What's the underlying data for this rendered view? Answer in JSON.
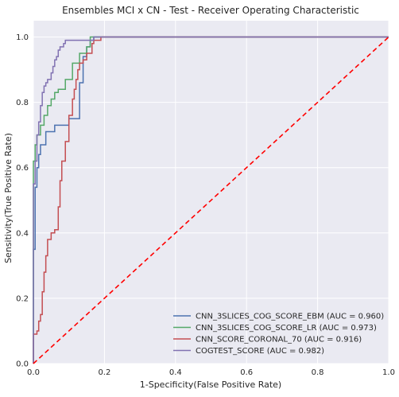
{
  "chart_data": {
    "type": "line",
    "title": "Ensembles MCI x CN - Test - Receiver Operating Characteristic",
    "xlabel": "1-Specificity(False Positive Rate)",
    "ylabel": "Sensitivity(True Positive Rate)",
    "xlim": [
      0,
      1
    ],
    "ylim": [
      0,
      1.05
    ],
    "xticks": [
      "0.0",
      "0.2",
      "0.4",
      "0.6",
      "0.8",
      "1.0"
    ],
    "yticks": [
      "0.0",
      "0.2",
      "0.4",
      "0.6",
      "0.8",
      "1.0"
    ],
    "grid": true,
    "legend_position": "lower-right",
    "background_color": "#EAEAF2",
    "grid_color": "#FFFFFF",
    "series": [
      {
        "name": "CNN_3SLICES_COG_SCORE_EBM (AUC = 0.960)",
        "color": "#4C72B0",
        "points": [
          [
            0,
            0
          ],
          [
            0,
            0.35
          ],
          [
            0.005,
            0.35
          ],
          [
            0.005,
            0.54
          ],
          [
            0.01,
            0.54
          ],
          [
            0.01,
            0.6
          ],
          [
            0.015,
            0.6
          ],
          [
            0.015,
            0.64
          ],
          [
            0.02,
            0.64
          ],
          [
            0.02,
            0.67
          ],
          [
            0.035,
            0.67
          ],
          [
            0.035,
            0.71
          ],
          [
            0.06,
            0.71
          ],
          [
            0.06,
            0.73
          ],
          [
            0.1,
            0.73
          ],
          [
            0.1,
            0.75
          ],
          [
            0.13,
            0.75
          ],
          [
            0.13,
            0.86
          ],
          [
            0.14,
            0.86
          ],
          [
            0.14,
            0.94
          ],
          [
            0.15,
            0.94
          ],
          [
            0.15,
            0.97
          ],
          [
            0.16,
            0.97
          ],
          [
            0.16,
            0.99
          ],
          [
            0.17,
            0.99
          ],
          [
            0.17,
            1.0
          ],
          [
            1,
            1.0
          ]
        ]
      },
      {
        "name": "CNN_3SLICES_COG_SCORE_LR (AUC = 0.973)",
        "color": "#55A868",
        "points": [
          [
            0,
            0
          ],
          [
            0,
            0.62
          ],
          [
            0.005,
            0.62
          ],
          [
            0.005,
            0.67
          ],
          [
            0.01,
            0.67
          ],
          [
            0.01,
            0.7
          ],
          [
            0.02,
            0.7
          ],
          [
            0.02,
            0.73
          ],
          [
            0.03,
            0.73
          ],
          [
            0.03,
            0.76
          ],
          [
            0.04,
            0.76
          ],
          [
            0.04,
            0.79
          ],
          [
            0.05,
            0.79
          ],
          [
            0.05,
            0.81
          ],
          [
            0.06,
            0.81
          ],
          [
            0.06,
            0.83
          ],
          [
            0.07,
            0.83
          ],
          [
            0.07,
            0.84
          ],
          [
            0.09,
            0.84
          ],
          [
            0.09,
            0.87
          ],
          [
            0.11,
            0.87
          ],
          [
            0.11,
            0.92
          ],
          [
            0.13,
            0.92
          ],
          [
            0.13,
            0.95
          ],
          [
            0.15,
            0.95
          ],
          [
            0.15,
            0.97
          ],
          [
            0.16,
            0.97
          ],
          [
            0.16,
            1.0
          ],
          [
            1,
            1.0
          ]
        ]
      },
      {
        "name": "CNN_SCORE_CORONAL_70 (AUC = 0.916)",
        "color": "#C44E52",
        "points": [
          [
            0,
            0
          ],
          [
            0,
            0.09
          ],
          [
            0.01,
            0.09
          ],
          [
            0.01,
            0.1
          ],
          [
            0.015,
            0.1
          ],
          [
            0.015,
            0.13
          ],
          [
            0.02,
            0.13
          ],
          [
            0.02,
            0.15
          ],
          [
            0.025,
            0.15
          ],
          [
            0.025,
            0.22
          ],
          [
            0.03,
            0.22
          ],
          [
            0.03,
            0.28
          ],
          [
            0.035,
            0.28
          ],
          [
            0.035,
            0.33
          ],
          [
            0.04,
            0.33
          ],
          [
            0.04,
            0.38
          ],
          [
            0.05,
            0.38
          ],
          [
            0.05,
            0.4
          ],
          [
            0.06,
            0.4
          ],
          [
            0.06,
            0.41
          ],
          [
            0.07,
            0.41
          ],
          [
            0.07,
            0.48
          ],
          [
            0.075,
            0.48
          ],
          [
            0.075,
            0.56
          ],
          [
            0.08,
            0.56
          ],
          [
            0.08,
            0.62
          ],
          [
            0.09,
            0.62
          ],
          [
            0.09,
            0.68
          ],
          [
            0.1,
            0.68
          ],
          [
            0.1,
            0.76
          ],
          [
            0.11,
            0.76
          ],
          [
            0.11,
            0.81
          ],
          [
            0.115,
            0.81
          ],
          [
            0.115,
            0.84
          ],
          [
            0.12,
            0.84
          ],
          [
            0.12,
            0.87
          ],
          [
            0.125,
            0.87
          ],
          [
            0.125,
            0.9
          ],
          [
            0.13,
            0.9
          ],
          [
            0.13,
            0.92
          ],
          [
            0.14,
            0.92
          ],
          [
            0.14,
            0.93
          ],
          [
            0.15,
            0.93
          ],
          [
            0.15,
            0.95
          ],
          [
            0.165,
            0.95
          ],
          [
            0.165,
            0.98
          ],
          [
            0.17,
            0.98
          ],
          [
            0.17,
            0.99
          ],
          [
            0.19,
            0.99
          ],
          [
            0.19,
            1.0
          ],
          [
            1,
            1.0
          ]
        ]
      },
      {
        "name": "COGTEST_SCORE (AUC = 0.982)",
        "color": "#8172B2",
        "points": [
          [
            0,
            0
          ],
          [
            0,
            0.55
          ],
          [
            0.005,
            0.55
          ],
          [
            0.005,
            0.62
          ],
          [
            0.01,
            0.62
          ],
          [
            0.01,
            0.7
          ],
          [
            0.015,
            0.7
          ],
          [
            0.015,
            0.74
          ],
          [
            0.02,
            0.74
          ],
          [
            0.02,
            0.79
          ],
          [
            0.025,
            0.79
          ],
          [
            0.025,
            0.83
          ],
          [
            0.03,
            0.83
          ],
          [
            0.03,
            0.85
          ],
          [
            0.035,
            0.85
          ],
          [
            0.035,
            0.86
          ],
          [
            0.04,
            0.86
          ],
          [
            0.04,
            0.87
          ],
          [
            0.05,
            0.87
          ],
          [
            0.05,
            0.89
          ],
          [
            0.055,
            0.89
          ],
          [
            0.055,
            0.91
          ],
          [
            0.06,
            0.91
          ],
          [
            0.06,
            0.93
          ],
          [
            0.065,
            0.93
          ],
          [
            0.065,
            0.94
          ],
          [
            0.07,
            0.94
          ],
          [
            0.07,
            0.96
          ],
          [
            0.075,
            0.96
          ],
          [
            0.075,
            0.97
          ],
          [
            0.085,
            0.97
          ],
          [
            0.085,
            0.98
          ],
          [
            0.09,
            0.98
          ],
          [
            0.09,
            0.99
          ],
          [
            0.17,
            0.99
          ],
          [
            0.17,
            1.0
          ],
          [
            1,
            1.0
          ]
        ]
      },
      {
        "name": "",
        "style": "dashed",
        "color": "#FF0000",
        "points": [
          [
            0,
            0
          ],
          [
            1,
            1
          ]
        ]
      }
    ]
  }
}
